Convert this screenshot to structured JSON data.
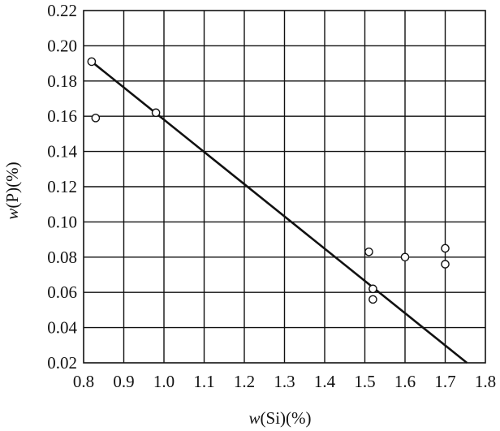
{
  "chart_data": {
    "type": "scatter",
    "xlabel": {
      "var": "w",
      "rest": "(Si)(%)"
    },
    "ylabel": {
      "var": "w",
      "rest": "(P)(%)"
    },
    "xlim": [
      0.8,
      1.8
    ],
    "ylim": [
      0.02,
      0.22
    ],
    "x_ticks": [
      "0.8",
      "0.9",
      "1.0",
      "1.1",
      "1.2",
      "1.3",
      "1.4",
      "1.5",
      "1.6",
      "1.7",
      "1.8"
    ],
    "y_ticks": [
      "0.02",
      "0.04",
      "0.06",
      "0.08",
      "0.10",
      "0.12",
      "0.14",
      "0.16",
      "0.18",
      "0.20",
      "0.22"
    ],
    "grid": true,
    "points": [
      {
        "x": 0.82,
        "y": 0.191
      },
      {
        "x": 0.83,
        "y": 0.159
      },
      {
        "x": 0.98,
        "y": 0.162
      },
      {
        "x": 1.51,
        "y": 0.083
      },
      {
        "x": 1.52,
        "y": 0.062
      },
      {
        "x": 1.52,
        "y": 0.056
      },
      {
        "x": 1.6,
        "y": 0.08
      },
      {
        "x": 1.7,
        "y": 0.085
      },
      {
        "x": 1.7,
        "y": 0.076
      }
    ],
    "trend_line": {
      "x": [
        0.82,
        1.754
      ],
      "y": [
        0.191,
        0.02
      ]
    }
  }
}
